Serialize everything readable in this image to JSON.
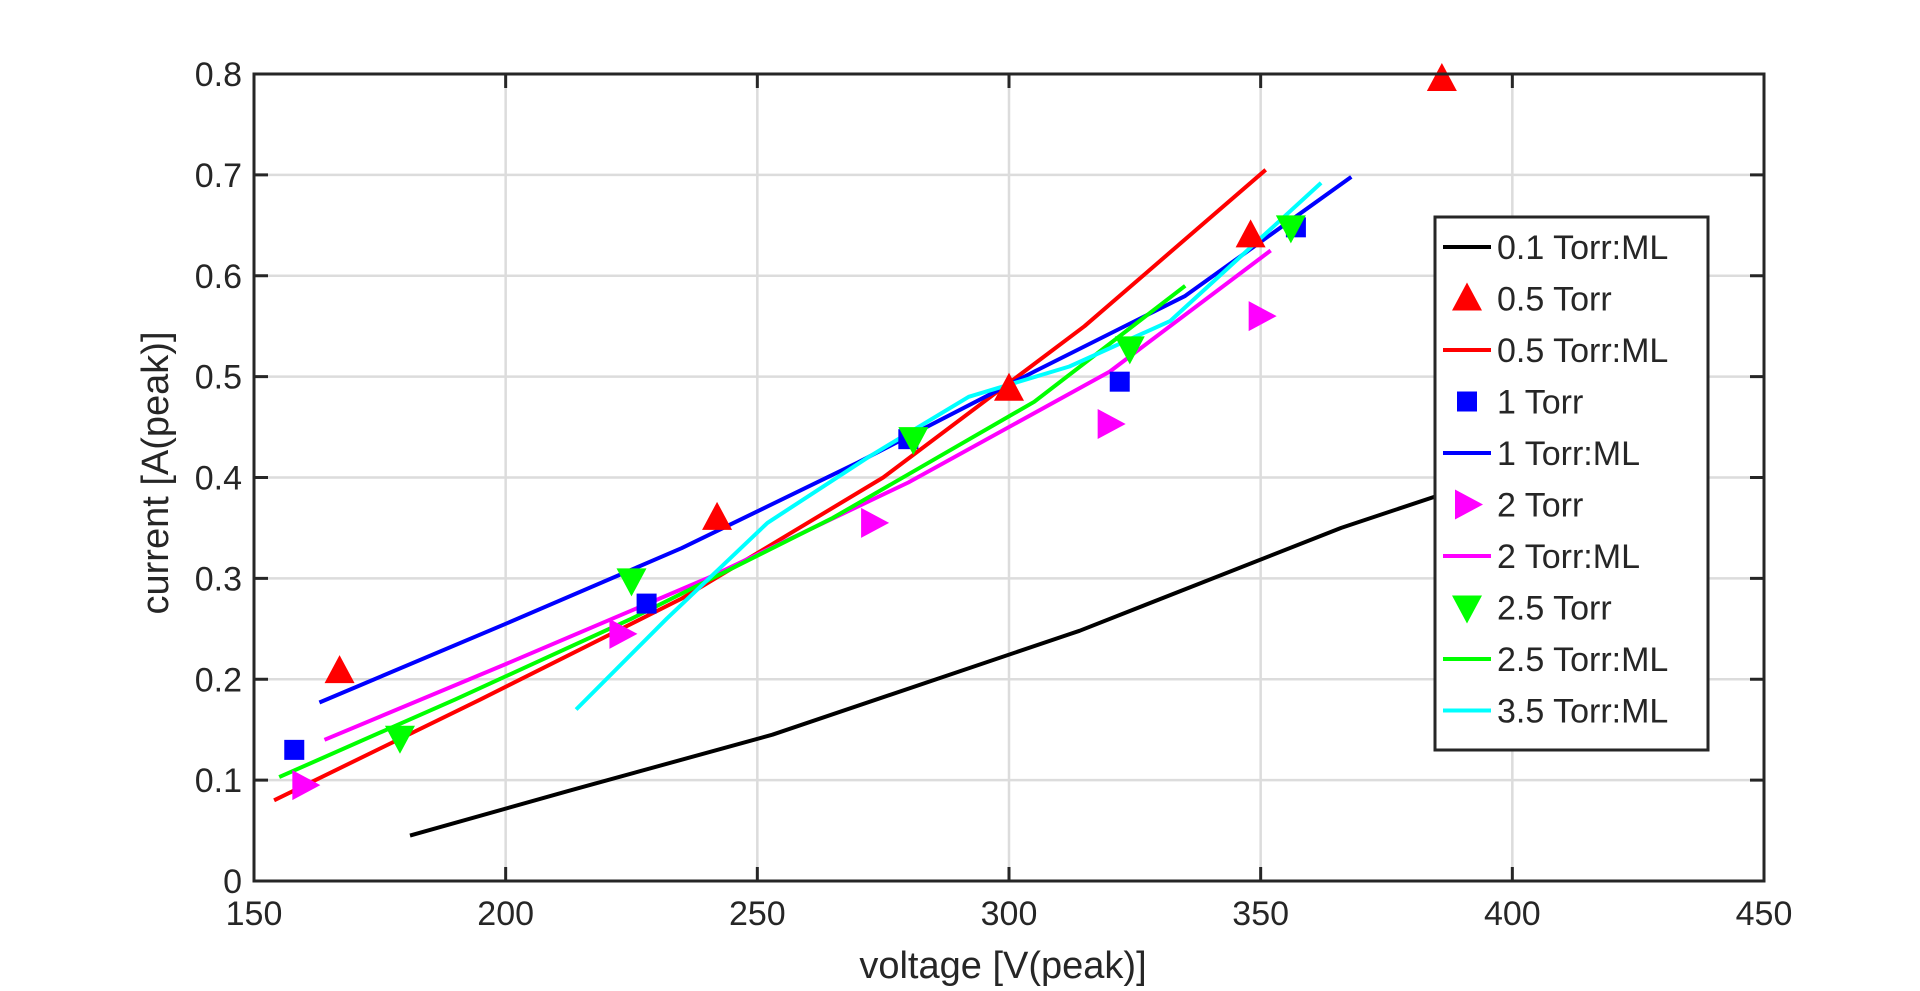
{
  "chart_data": {
    "type": "scatter",
    "title": "",
    "xlabel": "voltage [V(peak)]",
    "ylabel": "current [A(peak)]",
    "xlim": [
      150,
      450
    ],
    "ylim": [
      0,
      0.8
    ],
    "xticks": [
      150,
      200,
      250,
      300,
      350,
      400,
      450
    ],
    "yticks": [
      0,
      0.1,
      0.2,
      0.3,
      0.4,
      0.5,
      0.6,
      0.7,
      0.8
    ],
    "xtick_labels": [
      "150",
      "200",
      "250",
      "300",
      "350",
      "400",
      "450"
    ],
    "ytick_labels": [
      "0",
      "0.1",
      "0.2",
      "0.3",
      "0.4",
      "0.5",
      "0.6",
      "0.7",
      "0.8"
    ],
    "grid": true,
    "legend_position": "right",
    "series": [
      {
        "name": "0.1 Torr:ML",
        "kind": "line",
        "color": "#000000",
        "x": [
          181,
          213,
          253,
          314,
          366,
          390
        ],
        "y": [
          0.045,
          0.09,
          0.145,
          0.248,
          0.35,
          0.39
        ]
      },
      {
        "name": "0.5 Torr",
        "kind": "marker",
        "marker": "triangle-up",
        "color": "#ff0000",
        "x": [
          167,
          242,
          300,
          348,
          386
        ],
        "y": [
          0.208,
          0.36,
          0.488,
          0.64,
          0.795
        ]
      },
      {
        "name": "0.5 Torr:ML",
        "kind": "line",
        "color": "#ff0000",
        "x": [
          154,
          195,
          235,
          275,
          315,
          351
        ],
        "y": [
          0.08,
          0.18,
          0.28,
          0.4,
          0.55,
          0.705
        ]
      },
      {
        "name": "1 Torr",
        "kind": "marker",
        "marker": "square",
        "color": "#0000ff",
        "x": [
          158,
          228,
          280,
          322,
          357
        ],
        "y": [
          0.13,
          0.275,
          0.438,
          0.495,
          0.648
        ]
      },
      {
        "name": "1 Torr:ML",
        "kind": "line",
        "color": "#0000ff",
        "x": [
          163,
          200,
          235,
          270,
          305,
          335,
          368
        ],
        "y": [
          0.177,
          0.255,
          0.33,
          0.415,
          0.505,
          0.58,
          0.698
        ]
      },
      {
        "name": "2 Torr",
        "kind": "marker",
        "marker": "triangle-right",
        "color": "#ff00ff",
        "x": [
          160,
          223,
          273,
          320,
          350
        ],
        "y": [
          0.095,
          0.245,
          0.355,
          0.453,
          0.56
        ]
      },
      {
        "name": "2 Torr:ML",
        "kind": "line",
        "color": "#ff00ff",
        "x": [
          164,
          200,
          240,
          280,
          320,
          352
        ],
        "y": [
          0.14,
          0.215,
          0.3,
          0.395,
          0.505,
          0.625
        ]
      },
      {
        "name": "2.5 Torr",
        "kind": "marker",
        "marker": "triangle-down",
        "color": "#00ff00",
        "x": [
          179,
          225,
          281,
          324,
          356
        ],
        "y": [
          0.142,
          0.298,
          0.438,
          0.528,
          0.648
        ]
      },
      {
        "name": "2.5 Torr:ML",
        "kind": "line",
        "color": "#00ff00",
        "x": [
          155,
          190,
          225,
          265,
          305,
          335
        ],
        "y": [
          0.103,
          0.18,
          0.26,
          0.36,
          0.475,
          0.59
        ]
      },
      {
        "name": "3.5 Torr:ML",
        "kind": "line",
        "color": "#00ffff",
        "x": [
          214,
          232,
          252,
          272,
          292,
          312,
          332,
          362
        ],
        "y": [
          0.17,
          0.26,
          0.355,
          0.42,
          0.48,
          0.51,
          0.555,
          0.692
        ]
      }
    ]
  }
}
